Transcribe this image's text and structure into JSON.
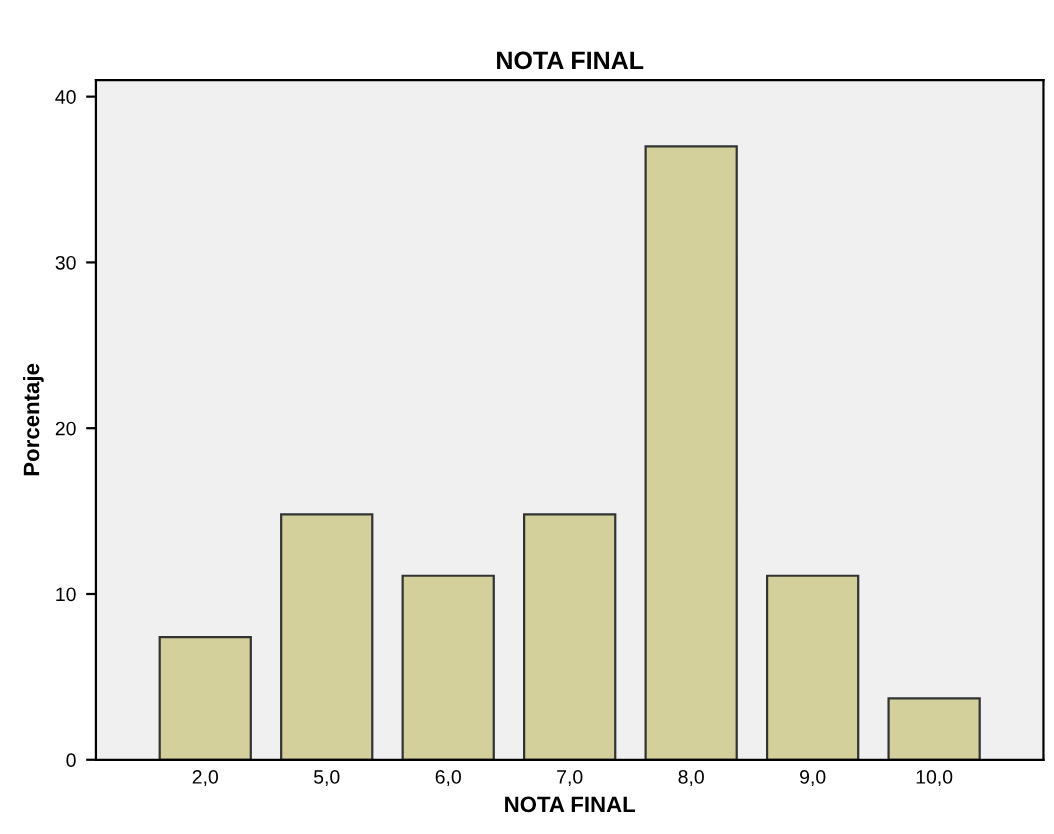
{
  "chart_data": {
    "type": "bar",
    "title": "NOTA FINAL",
    "xlabel": "NOTA FINAL",
    "ylabel": "Porcentaje",
    "categories": [
      "2,0",
      "5,0",
      "6,0",
      "7,0",
      "8,0",
      "9,0",
      "10,0"
    ],
    "values": [
      7.4,
      14.8,
      11.1,
      14.8,
      37.0,
      11.1,
      3.7
    ],
    "color": "#d4d09c",
    "ylim": [
      0,
      41
    ],
    "yticks": [
      0,
      10,
      20,
      30,
      40
    ],
    "grid": false
  }
}
